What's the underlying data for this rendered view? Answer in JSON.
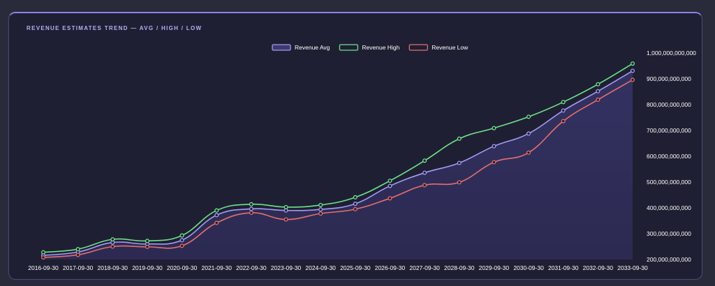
{
  "chart_title": "REVENUE ESTIMATES TREND — AVG / HIGH / LOW",
  "chart_data": {
    "type": "line",
    "title": "REVENUE ESTIMATES TREND — AVG / HIGH / LOW",
    "x": [
      "2016-09-30",
      "2017-09-30",
      "2018-09-30",
      "2019-09-30",
      "2020-09-30",
      "2021-09-30",
      "2022-09-30",
      "2023-09-30",
      "2024-09-30",
      "2025-09-30",
      "2026-09-30",
      "2027-09-30",
      "2028-09-30",
      "2029-09-30",
      "2030-09-30",
      "2031-09-30",
      "2032-09-30",
      "2033-09-30"
    ],
    "y_ticks": [
      "200,000,000,000",
      "300,000,000,000",
      "400,000,000,000",
      "500,000,000,000",
      "600,000,000,000",
      "700,000,000,000",
      "800,000,000,000",
      "900,000,000,000",
      "1,000,000,000,000"
    ],
    "ylim": [
      200000000000,
      1000000000000
    ],
    "y_axis_position": "right",
    "legend_position": "top-center",
    "grid": false,
    "series": [
      {
        "name": "Revenue Avg",
        "color": "#a59bf3",
        "fill": true,
        "values": [
          216000000000,
          229000000000,
          266000000000,
          260000000000,
          275000000000,
          372000000000,
          396000000000,
          390000000000,
          394000000000,
          416000000000,
          485000000000,
          536000000000,
          574000000000,
          639000000000,
          688000000000,
          777000000000,
          852000000000,
          931000000000
        ]
      },
      {
        "name": "Revenue High",
        "color": "#6fe38a",
        "fill": false,
        "values": [
          228000000000,
          240000000000,
          278000000000,
          272000000000,
          293000000000,
          390000000000,
          414000000000,
          403000000000,
          411000000000,
          441000000000,
          505000000000,
          583000000000,
          668000000000,
          709000000000,
          753000000000,
          810000000000,
          879000000000,
          959000000000
        ]
      },
      {
        "name": "Revenue Low",
        "color": "#e36f6f",
        "fill": false,
        "values": [
          208000000000,
          218000000000,
          250000000000,
          249000000000,
          253000000000,
          342000000000,
          381000000000,
          355000000000,
          378000000000,
          395000000000,
          437000000000,
          488000000000,
          499000000000,
          577000000000,
          614000000000,
          736000000000,
          819000000000,
          896000000000
        ]
      }
    ]
  }
}
